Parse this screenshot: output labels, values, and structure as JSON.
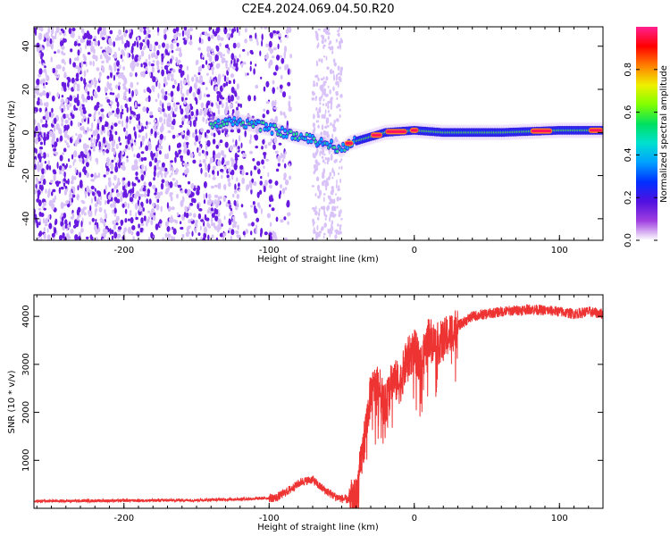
{
  "figure_title": "C2E4.2024.069.04.50.R20",
  "colors": {
    "snr_line": "#ee3333",
    "scatter": "#6a1be0",
    "scatter_light": "#d9c2f7",
    "frame": "#000000",
    "background": "#ffffff"
  },
  "chart_data": [
    {
      "type": "heatmap",
      "name": "spectrogram",
      "title": "",
      "xlabel": "Height of straight line (km)",
      "ylabel": "Frequency (Hz)",
      "xlim": [
        -262,
        130
      ],
      "ylim": [
        -50,
        49
      ],
      "x_ticks": [
        -200,
        -100,
        0,
        100
      ],
      "x_tick_labels": [
        "-200",
        "-100",
        "0",
        "100"
      ],
      "y_ticks": [
        -40,
        -20,
        0,
        20,
        40
      ],
      "y_tick_labels": [
        "-40",
        "-20",
        "0",
        "20",
        "40"
      ],
      "noise_region": {
        "x_from": -262,
        "x_to": -100,
        "density": "high"
      },
      "noise_patch": {
        "x_from": -70,
        "x_to": -50
      },
      "signal_track": {
        "description": "Doppler trace in frequency vs height",
        "points": [
          {
            "x": -140,
            "freq": 4
          },
          {
            "x": -120,
            "freq": 5
          },
          {
            "x": -100,
            "freq": 2
          },
          {
            "x": -80,
            "freq": -2
          },
          {
            "x": -60,
            "freq": -5
          },
          {
            "x": -50,
            "freq": -8
          },
          {
            "x": -45,
            "freq": -5
          },
          {
            "x": -30,
            "freq": -2
          },
          {
            "x": -20,
            "freq": 0
          },
          {
            "x": 0,
            "freq": 1
          },
          {
            "x": 20,
            "freq": 0
          },
          {
            "x": 60,
            "freq": 0
          },
          {
            "x": 100,
            "freq": 1
          },
          {
            "x": 130,
            "freq": 1
          }
        ],
        "peak_regions_x": [
          [
            -48,
            -42
          ],
          [
            -30,
            -22
          ],
          [
            -20,
            -5
          ],
          [
            -3,
            3
          ],
          [
            80,
            95
          ],
          [
            120,
            130
          ]
        ]
      },
      "colorbar": {
        "label": "Normalized spectral amplitude",
        "range": [
          0,
          1
        ],
        "ticks": [
          0.0,
          0.2,
          0.4,
          0.6,
          0.8
        ],
        "tick_labels": [
          "0.0",
          "0.2",
          "0.4",
          "0.6",
          "0.8"
        ],
        "colormap": [
          "#ffffff",
          "#a040e0",
          "#5010e0",
          "#0030ff",
          "#00a0ff",
          "#00e0d0",
          "#00e060",
          "#80ff00",
          "#f0f000",
          "#ff8000",
          "#ff0000",
          "#ff2090"
        ]
      }
    },
    {
      "type": "line",
      "name": "snr",
      "title": "",
      "xlabel": "Height of straight line (km)",
      "ylabel": "SNR (10 * v/v)",
      "xlim": [
        -262,
        130
      ],
      "ylim": [
        0,
        4450
      ],
      "x_ticks": [
        -200,
        -100,
        0,
        100
      ],
      "x_tick_labels": [
        "-200",
        "-100",
        "0",
        "100"
      ],
      "y_ticks": [
        1000,
        2000,
        3000,
        4000
      ],
      "y_tick_labels": [
        "1000",
        "2000",
        "3000",
        "4000"
      ],
      "series": [
        {
          "name": "SNR",
          "color": "#ee3333",
          "x": [
            -262,
            -200,
            -150,
            -110,
            -95,
            -85,
            -78,
            -70,
            -65,
            -60,
            -55,
            -50,
            -45,
            -40,
            -35,
            -30,
            -25,
            -20,
            -15,
            -10,
            -5,
            0,
            5,
            10,
            15,
            20,
            30,
            40,
            60,
            80,
            100,
            110,
            120,
            130
          ],
          "y": [
            150,
            160,
            170,
            200,
            220,
            400,
            550,
            600,
            450,
            350,
            250,
            200,
            180,
            220,
            1300,
            2400,
            2600,
            2100,
            2700,
            2600,
            3100,
            3300,
            3000,
            3600,
            3400,
            3500,
            3800,
            4000,
            4100,
            4150,
            4100,
            4050,
            4100,
            4050
          ]
        }
      ]
    }
  ]
}
